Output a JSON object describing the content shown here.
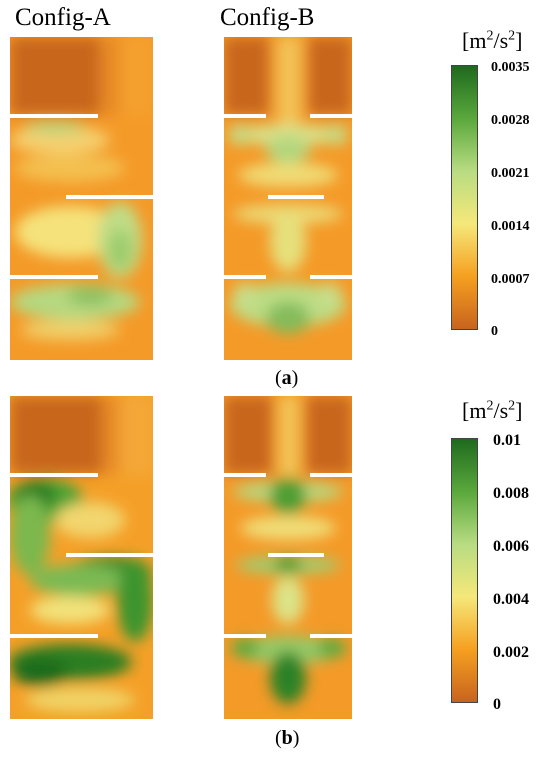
{
  "columns": {
    "a_title": "Config-A",
    "b_title": "Config-B"
  },
  "panels": [
    {
      "label": "a",
      "unit": {
        "base": "[m",
        "exp1": "2",
        "mid": "/s",
        "exp2": "2",
        "close": "]"
      },
      "colorbar": {
        "ticks": [
          "0.0035",
          "0.0028",
          "0.0021",
          "0.0014",
          "0.0007",
          "0"
        ]
      }
    },
    {
      "label": "b",
      "unit": {
        "base": "[m",
        "exp1": "2",
        "mid": "/s",
        "exp2": "2",
        "close": "]"
      },
      "colorbar": {
        "ticks": [
          "0.01",
          "0.008",
          "0.006",
          "0.004",
          "0.002",
          "0"
        ]
      }
    }
  ],
  "colors": {
    "low": "#c8641e",
    "orange": "#f08c1e",
    "yellow": "#f0e678",
    "light_green": "#b4dc82",
    "mid_green": "#4ca032",
    "dark_green": "#1e6e1e",
    "baffle": "#ffffff"
  }
}
